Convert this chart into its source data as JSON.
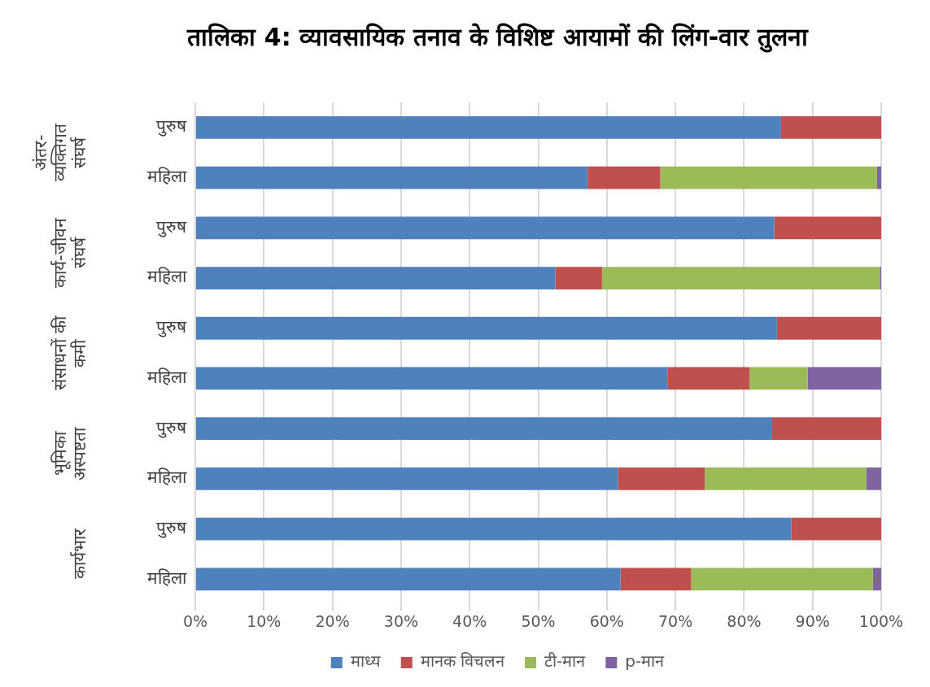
{
  "chart_data": {
    "type": "bar",
    "orientation": "horizontal",
    "stacked": true,
    "title": "तालिका 4: व्यावसायिक तनाव के विशिष्ट आयामों की लिंग-वार तुलना",
    "categories": [
      "पुरुष",
      "महिला",
      "पुरुष",
      "महिला",
      "पुरुष",
      "महिला",
      "पुरुष",
      "महिला",
      "पुरुष",
      "महिला"
    ],
    "annotations": [
      "अंतर-व्यक्तिगत संघर्ष",
      "कार्य-जीवन संघर्ष",
      "संसाधनों की कमी",
      "भूमिका अस्पष्टता",
      "कार्यभार"
    ],
    "series": [
      {
        "name": "माध्य",
        "color": "#4f81bd",
        "values": [
          85.4,
          57.2,
          84.4,
          52.5,
          84.8,
          68.9,
          84.1,
          61.6,
          86.9,
          62.0
        ]
      },
      {
        "name": "मानक विचलन",
        "color": "#c0504d",
        "values": [
          14.6,
          10.6,
          15.6,
          6.8,
          15.2,
          11.9,
          15.9,
          12.7,
          13.1,
          10.3
        ]
      },
      {
        "name": "टी-मान",
        "color": "#9bbb59",
        "values": [
          0,
          31.6,
          0,
          40.5,
          0,
          8.5,
          0,
          23.5,
          0,
          26.5
        ]
      },
      {
        "name": "p-मान",
        "color": "#8064a2",
        "values": [
          0,
          0.6,
          0,
          0.2,
          0,
          10.7,
          0,
          2.2,
          0,
          1.2
        ]
      }
    ],
    "xlim": [
      0,
      100
    ],
    "xticks": [
      {
        "value": 0,
        "label": "0%"
      },
      {
        "value": 10,
        "label": "10%"
      },
      {
        "value": 20,
        "label": "20%"
      },
      {
        "value": 30,
        "label": "30%"
      },
      {
        "value": 40,
        "label": "40%"
      },
      {
        "value": 50,
        "label": "50%"
      },
      {
        "value": 60,
        "label": "60%"
      },
      {
        "value": 70,
        "label": "70%"
      },
      {
        "value": 80,
        "label": "80%"
      },
      {
        "value": 90,
        "label": "90%"
      },
      {
        "value": 100,
        "label": "100%"
      }
    ],
    "grid": "x",
    "legend": "bottom"
  }
}
